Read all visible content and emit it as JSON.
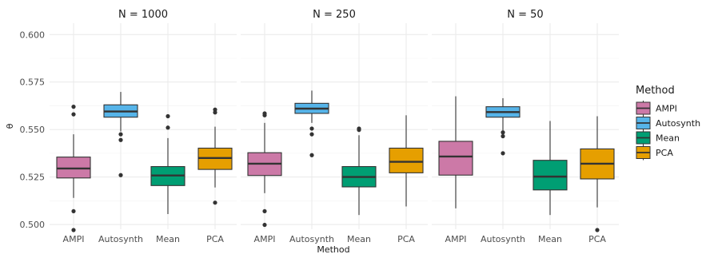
{
  "chart_data": {
    "type": "boxplot",
    "xlabel": "Method",
    "ylabel": "θ",
    "ylim": [
      0.4975,
      0.606
    ],
    "yticks": [
      0.5,
      0.525,
      0.55,
      0.575,
      0.6
    ],
    "ytick_labels": [
      "0.500",
      "0.525",
      "0.550",
      "0.575",
      "0.600"
    ],
    "categories": [
      "AMPI",
      "Autosynth",
      "Mean",
      "PCA"
    ],
    "colors": {
      "AMPI": "#CC79A7",
      "Autosynth": "#56B4E9",
      "Mean": "#009E73",
      "PCA": "#E69F00"
    },
    "legend": {
      "title": "Method",
      "position": "right",
      "items": [
        "AMPI",
        "Autosynth",
        "Mean",
        "PCA"
      ]
    },
    "grid": true,
    "facets": [
      {
        "label": "N = 1000",
        "boxes": [
          {
            "category": "AMPI",
            "whisker_low": 0.514,
            "q1": 0.5245,
            "median": 0.5295,
            "q3": 0.5355,
            "whisker_high": 0.5475,
            "outliers": [
              0.562,
              0.558,
              0.507,
              0.4965
            ]
          },
          {
            "category": "Autosynth",
            "whisker_low": 0.549,
            "q1": 0.5565,
            "median": 0.5595,
            "q3": 0.563,
            "whisker_high": 0.5698,
            "outliers": [
              0.5475,
              0.5445,
              0.526
            ]
          },
          {
            "category": "Mean",
            "whisker_low": 0.5055,
            "q1": 0.5205,
            "median": 0.5258,
            "q3": 0.5305,
            "whisker_high": 0.5455,
            "outliers": [
              0.557,
              0.551
            ]
          },
          {
            "category": "PCA",
            "whisker_low": 0.5195,
            "q1": 0.529,
            "median": 0.535,
            "q3": 0.5402,
            "whisker_high": 0.5515,
            "outliers": [
              0.5605,
              0.559,
              0.5115
            ]
          }
        ]
      },
      {
        "label": "N = 250",
        "boxes": [
          {
            "category": "AMPI",
            "whisker_low": 0.5165,
            "q1": 0.5258,
            "median": 0.532,
            "q3": 0.5378,
            "whisker_high": 0.5535,
            "outliers": [
              0.5585,
              0.5575,
              0.507,
              0.4998
            ]
          },
          {
            "category": "Autosynth",
            "whisker_low": 0.5535,
            "q1": 0.5585,
            "median": 0.561,
            "q3": 0.5638,
            "whisker_high": 0.5705,
            "outliers": [
              0.5505,
              0.5475,
              0.5365
            ]
          },
          {
            "category": "Mean",
            "whisker_low": 0.505,
            "q1": 0.5198,
            "median": 0.525,
            "q3": 0.5305,
            "whisker_high": 0.547,
            "outliers": [
              0.5505,
              0.5498
            ]
          },
          {
            "category": "PCA",
            "whisker_low": 0.5095,
            "q1": 0.5272,
            "median": 0.533,
            "q3": 0.5402,
            "whisker_high": 0.5575,
            "outliers": []
          }
        ]
      },
      {
        "label": "N = 50",
        "boxes": [
          {
            "category": "AMPI",
            "whisker_low": 0.5085,
            "q1": 0.526,
            "median": 0.5358,
            "q3": 0.5438,
            "whisker_high": 0.5675,
            "outliers": []
          },
          {
            "category": "Autosynth",
            "whisker_low": 0.5495,
            "q1": 0.5565,
            "median": 0.5592,
            "q3": 0.562,
            "whisker_high": 0.5665,
            "outliers": [
              0.5485,
              0.5465,
              0.5375
            ]
          },
          {
            "category": "Mean",
            "whisker_low": 0.505,
            "q1": 0.5182,
            "median": 0.5252,
            "q3": 0.5338,
            "whisker_high": 0.5545,
            "outliers": []
          },
          {
            "category": "PCA",
            "whisker_low": 0.509,
            "q1": 0.524,
            "median": 0.532,
            "q3": 0.5398,
            "whisker_high": 0.557,
            "outliers": [
              0.495
            ]
          }
        ]
      }
    ]
  }
}
